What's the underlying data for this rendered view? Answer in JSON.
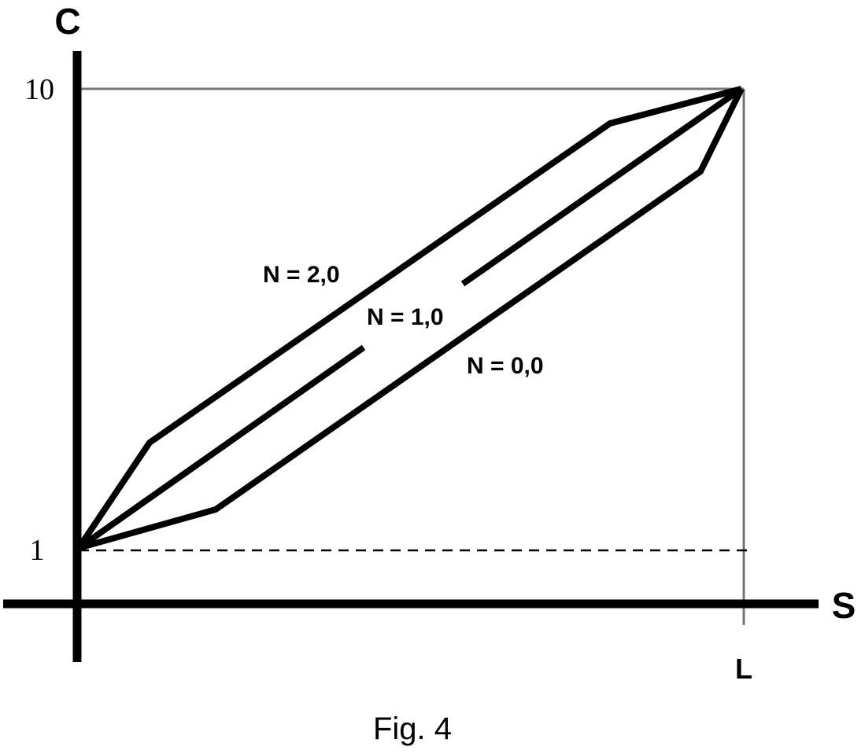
{
  "diagram": {
    "axis_labels": {
      "y": "C",
      "x": "S"
    },
    "tick_labels": {
      "y_top": "10",
      "y_bottom": "1",
      "x_end": "L"
    },
    "curve_labels": [
      "N = 2,0",
      "N = 1,0",
      "N = 0,0"
    ],
    "caption": "Fig. 4",
    "colors": {
      "ink": "#000000",
      "guide": "#777777"
    }
  }
}
